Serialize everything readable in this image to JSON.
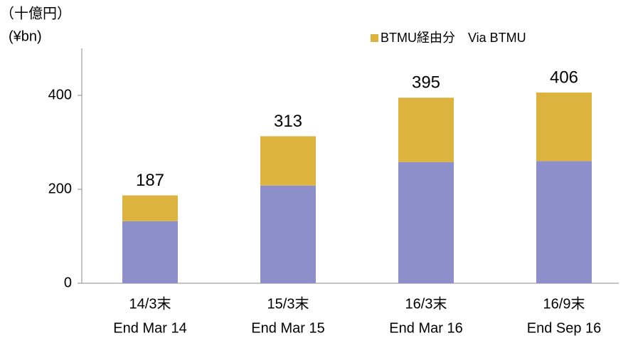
{
  "chart_data": {
    "type": "stacked_bar",
    "unit_labels": [
      "（十億円）",
      "(¥bn)"
    ],
    "categories": [
      [
        "14/3末",
        "End Mar 14"
      ],
      [
        "15/3末",
        "End Mar 15"
      ],
      [
        "16/3末",
        "End Mar 16"
      ],
      [
        "16/9末",
        "End Sep 16"
      ]
    ],
    "series": [
      {
        "color": "#8c8fca",
        "values": [
          132,
          208,
          258,
          260
        ]
      },
      {
        "name": "BTMU経由分　Via BTMU",
        "color": "#ddb33f",
        "values": [
          55,
          105,
          137,
          146
        ]
      }
    ],
    "totals": [
      187,
      313,
      395,
      406
    ],
    "ylim": [
      0,
      500
    ],
    "yticks": [
      0,
      200,
      400
    ],
    "legend": "top-right"
  }
}
